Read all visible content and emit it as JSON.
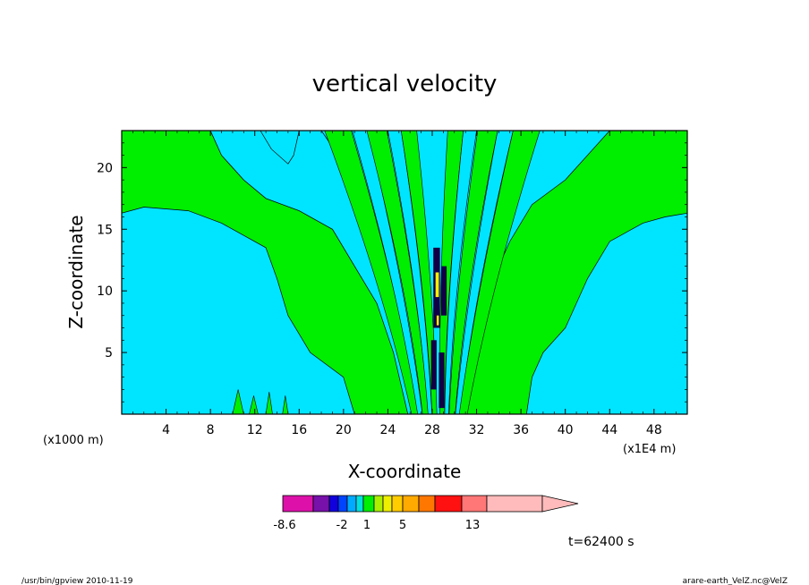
{
  "chart_data": {
    "type": "contour",
    "title": "vertical velocity",
    "xlabel": "X-coordinate",
    "ylabel": "Z-coordinate",
    "x_unit": "(x1E4 m)",
    "y_unit": "(x1000 m)",
    "xlim": [
      0,
      51
    ],
    "ylim": [
      0,
      23
    ],
    "x_ticks": [
      4,
      8,
      12,
      16,
      20,
      24,
      28,
      32,
      36,
      40,
      44,
      48
    ],
    "y_ticks": [
      5,
      10,
      15,
      20
    ],
    "colorbar": {
      "colors": [
        "#dd11aa",
        "#7711aa",
        "#1100dd",
        "#0044ff",
        "#00aaff",
        "#00e0e0",
        "#00ee00",
        "#aaee00",
        "#eeee00",
        "#ffcc00",
        "#ffaa00",
        "#ff7700",
        "#ff1111",
        "#ff7777",
        "#ffbbbb"
      ],
      "tick_labels": [
        "-8.6",
        "-2",
        "1",
        "5",
        "13"
      ]
    },
    "fill_colors": {
      "negative_small": "#00e5ff",
      "positive_small": "#00ee00",
      "strong_updraft": "#ffee00",
      "strong_downdraft": "#110044"
    },
    "time_label": "t=62400 s"
  },
  "footer": {
    "left": "/usr/bin/gpview   2010-11-19",
    "right": "arare-earth_VelZ.nc@VelZ"
  }
}
